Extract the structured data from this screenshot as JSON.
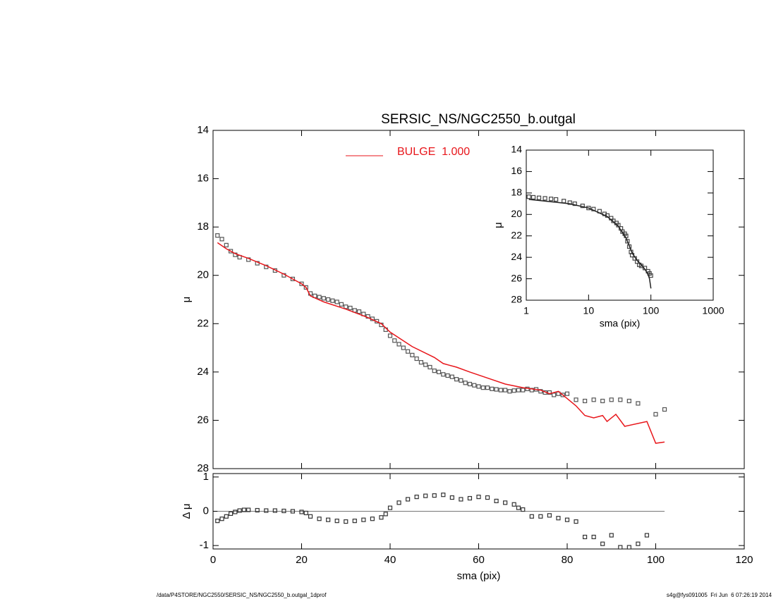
{
  "chart_data": [
    {
      "type": "scatter",
      "title": "SERSIC_NS/NGC2550_b.outgal",
      "ylabel": "μ",
      "xlim": [
        0,
        120
      ],
      "ylim": [
        28,
        14
      ],
      "yticks": [
        14,
        16,
        18,
        20,
        22,
        24,
        26,
        28
      ],
      "series": [
        {
          "color": "#555555",
          "x": [
            1,
            2,
            3,
            4,
            5,
            6,
            8,
            10,
            12,
            14,
            16,
            18,
            20,
            21,
            22,
            23,
            24,
            25,
            26,
            27,
            28,
            29,
            30,
            31,
            32,
            33,
            34,
            35,
            36,
            37,
            38,
            39,
            40,
            41,
            42,
            43,
            44,
            45,
            46,
            47,
            48,
            49,
            50,
            51,
            52,
            53,
            54,
            55,
            56,
            57,
            58,
            59,
            60,
            61,
            62,
            63,
            64,
            65,
            66,
            67,
            68,
            69,
            70,
            71,
            72,
            73,
            74,
            75,
            76,
            77,
            78,
            79,
            80,
            82,
            84,
            86,
            88,
            90,
            92,
            94,
            96,
            100,
            102
          ],
          "values": [
            18.35,
            18.5,
            18.75,
            19.0,
            19.15,
            19.25,
            19.35,
            19.5,
            19.65,
            19.8,
            20.0,
            20.15,
            20.35,
            20.5,
            20.75,
            20.85,
            20.9,
            20.95,
            21.0,
            21.05,
            21.1,
            21.2,
            21.3,
            21.35,
            21.45,
            21.5,
            21.6,
            21.7,
            21.8,
            21.9,
            22.05,
            22.25,
            22.5,
            22.7,
            22.85,
            23.0,
            23.15,
            23.3,
            23.45,
            23.6,
            23.7,
            23.8,
            23.95,
            24.0,
            24.1,
            24.15,
            24.2,
            24.3,
            24.35,
            24.45,
            24.5,
            24.55,
            24.6,
            24.65,
            24.65,
            24.7,
            24.72,
            24.75,
            24.75,
            24.8,
            24.77,
            24.75,
            24.75,
            24.7,
            24.75,
            24.72,
            24.8,
            24.85,
            24.85,
            24.95,
            24.9,
            24.95,
            24.9,
            25.15,
            25.2,
            25.15,
            25.2,
            25.15,
            25.15,
            25.2,
            25.3,
            25.75,
            25.55
          ]
        },
        {
          "name": "BULGE  1.000",
          "color": "#e8161b",
          "line": true,
          "x": [
            1,
            3,
            5,
            8,
            12,
            16,
            20,
            21,
            22,
            25,
            30,
            35,
            38,
            40,
            45,
            50,
            52,
            55,
            58,
            62,
            66,
            70,
            74,
            76,
            78,
            80,
            82,
            84,
            86,
            88,
            89,
            91,
            93,
            98,
            100,
            102
          ],
          "values": [
            18.65,
            18.9,
            19.1,
            19.3,
            19.6,
            19.95,
            20.35,
            20.5,
            20.85,
            21.1,
            21.4,
            21.75,
            22.0,
            22.35,
            22.95,
            23.4,
            23.65,
            23.8,
            24.0,
            24.25,
            24.5,
            24.65,
            24.75,
            24.9,
            24.8,
            25.1,
            25.4,
            25.8,
            25.9,
            25.8,
            26.05,
            25.75,
            26.25,
            26.05,
            26.95,
            26.9
          ]
        }
      ]
    },
    {
      "type": "scatter",
      "ylabel": "Δ μ",
      "xlabel": "sma (pix)",
      "xlim": [
        0,
        120
      ],
      "xticks": [
        0,
        20,
        40,
        60,
        80,
        100,
        120
      ],
      "ylim": [
        -1.1,
        1.1
      ],
      "yticks": [
        1,
        0,
        -1
      ],
      "series": [
        {
          "color": "#333333",
          "x": [
            1,
            2,
            3,
            4,
            5,
            6,
            7,
            8,
            10,
            12,
            14,
            16,
            18,
            20,
            21,
            22,
            24,
            26,
            28,
            30,
            32,
            34,
            36,
            38,
            39,
            40,
            42,
            44,
            46,
            48,
            50,
            52,
            54,
            56,
            58,
            60,
            62,
            64,
            66,
            68,
            69,
            70,
            72,
            74,
            76,
            78,
            80,
            82,
            84,
            86,
            88,
            90,
            92,
            94,
            96,
            98
          ],
          "values": [
            -0.28,
            -0.22,
            -0.15,
            -0.07,
            -0.02,
            0.02,
            0.04,
            0.04,
            0.03,
            0.02,
            0.02,
            0.01,
            0.0,
            -0.02,
            -0.05,
            -0.15,
            -0.22,
            -0.25,
            -0.28,
            -0.3,
            -0.28,
            -0.25,
            -0.22,
            -0.18,
            -0.08,
            0.1,
            0.25,
            0.35,
            0.42,
            0.45,
            0.46,
            0.48,
            0.4,
            0.35,
            0.38,
            0.42,
            0.4,
            0.3,
            0.25,
            0.2,
            0.1,
            0.05,
            -0.15,
            -0.15,
            -0.12,
            -0.2,
            -0.25,
            -0.3,
            -0.75,
            -0.75,
            -0.95,
            -0.7,
            -1.05,
            -1.05,
            -0.95,
            -0.7
          ]
        }
      ]
    },
    {
      "type": "scatter",
      "xlog": true,
      "xlabel": "sma (pix)",
      "ylabel": "μ",
      "xlim": [
        1,
        1000
      ],
      "xticks": [
        1,
        10,
        100,
        1000
      ],
      "ylim": [
        28,
        14
      ],
      "yticks": [
        14,
        16,
        18,
        20,
        22,
        24,
        26,
        28
      ],
      "series": [
        {
          "color": "#444444",
          "x": [
            1.1,
            1.3,
            1.6,
            2,
            2.5,
            3,
            4,
            5,
            6,
            8,
            10,
            12,
            15,
            18,
            20,
            23,
            25,
            28,
            30,
            33,
            35,
            38,
            40,
            42,
            45,
            48,
            50,
            55,
            60,
            65,
            70,
            80,
            90,
            95,
            100
          ],
          "values": [
            18.35,
            18.4,
            18.45,
            18.5,
            18.55,
            18.6,
            18.75,
            18.9,
            19.0,
            19.2,
            19.4,
            19.5,
            19.7,
            19.95,
            20.1,
            20.35,
            20.6,
            20.8,
            21.0,
            21.3,
            21.6,
            21.8,
            22.0,
            22.5,
            23.0,
            23.5,
            23.8,
            24.1,
            24.4,
            24.7,
            24.8,
            25.0,
            25.3,
            25.5,
            25.7
          ]
        },
        {
          "color": "#222222",
          "line": true,
          "x": [
            1.1,
            5,
            10,
            20,
            30,
            40,
            50,
            60,
            70,
            80,
            90,
            95,
            100
          ],
          "values": [
            18.6,
            19.0,
            19.4,
            20.2,
            21.1,
            22.2,
            23.6,
            24.3,
            24.7,
            25.1,
            25.6,
            26.0,
            26.9
          ]
        }
      ]
    }
  ],
  "footer": {
    "left": "/data/P4STORE/NGC2550/SERSIC_NS/NGC2550_b.outgal_1dprof",
    "right": "s4g@fys091005  Fri Jun  6 07:26:19 2014"
  }
}
